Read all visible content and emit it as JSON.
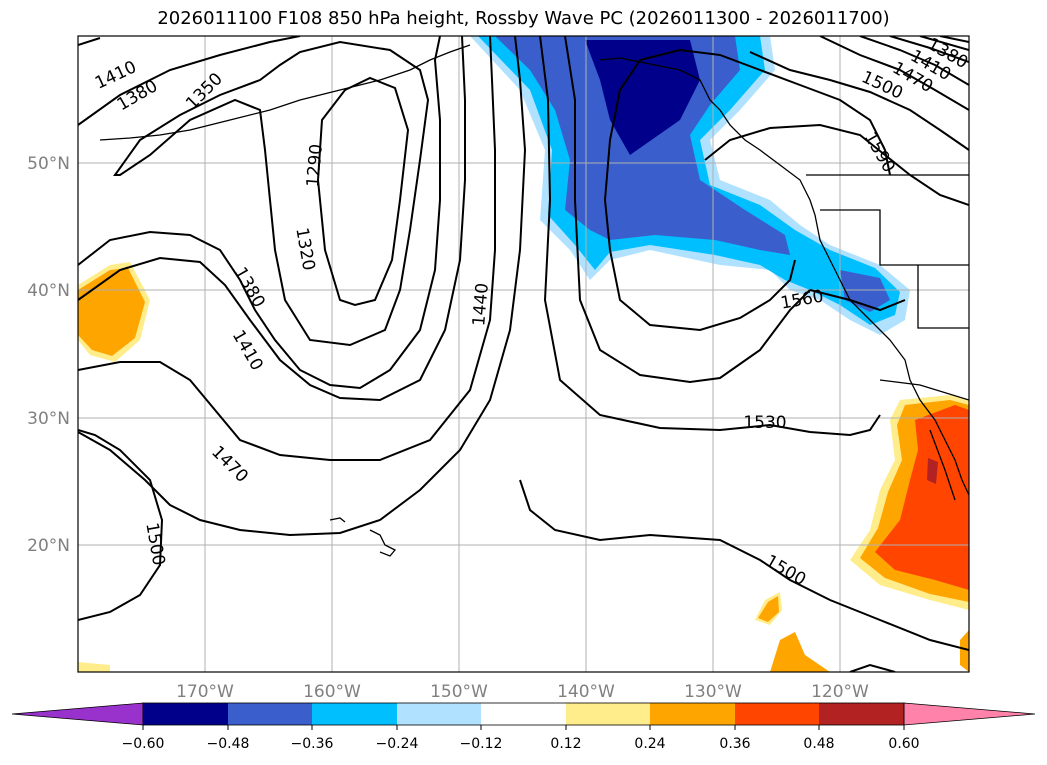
{
  "title": "2026011100 F108 850 hPa height, Rossby Wave PC (2026011300 - 2026011700)",
  "lat_labels": [
    "50°N",
    "40°N",
    "30°N",
    "20°N"
  ],
  "lon_labels": [
    "170°W",
    "160°W",
    "150°W",
    "140°W",
    "130°W",
    "120°W"
  ],
  "contour_labels": [
    "1410",
    "1380",
    "1350",
    "1290",
    "1320",
    "1380",
    "1410",
    "1470",
    "1500",
    "1440",
    "1530",
    "1560",
    "1500",
    "1590",
    "1500",
    "1470",
    "1410",
    "1380"
  ],
  "colorbar": {
    "ticks": [
      "−0.60",
      "−0.48",
      "−0.36",
      "−0.24",
      "−0.12",
      "0.12",
      "0.24",
      "0.36",
      "0.48",
      "0.60"
    ],
    "colors": [
      "#9932cc",
      "#00008b",
      "#3a5fcd",
      "#00bfff",
      "#b0e2ff",
      "#ffffff",
      "#ffec8b",
      "#ffa500",
      "#ff4500",
      "#b22222",
      "#ff82ab"
    ]
  }
}
